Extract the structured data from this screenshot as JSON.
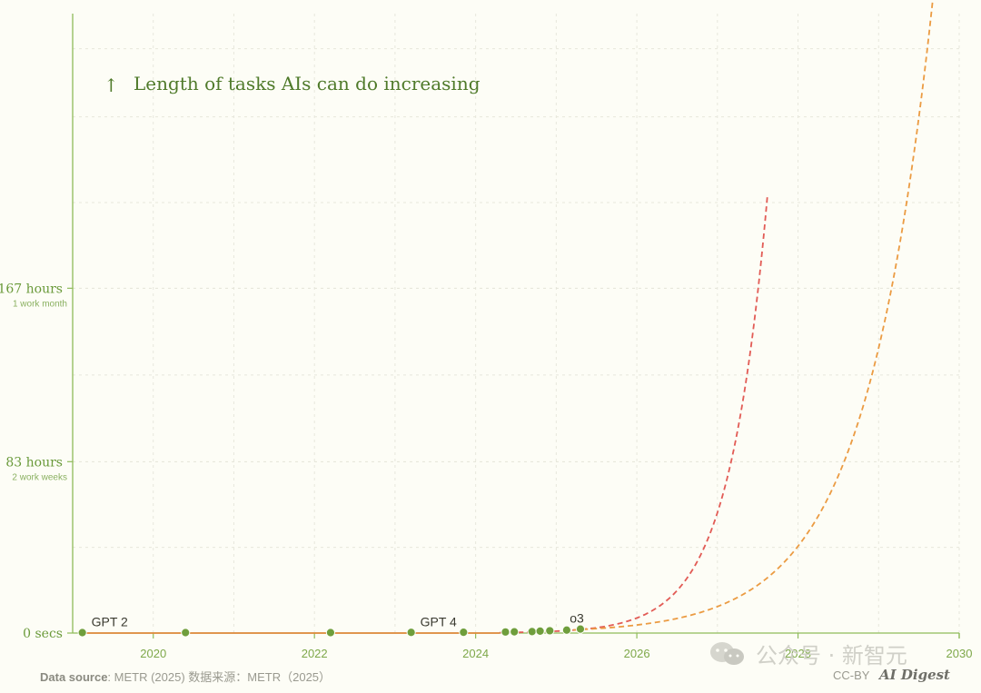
{
  "chart_data": {
    "type": "line",
    "title": "Length of tasks AIs can do increasing",
    "title_arrow": "↑",
    "x_ticks": [
      "2020",
      "2022",
      "2024",
      "2026",
      "2028",
      "2030"
    ],
    "x_tick_values": [
      2020,
      2022,
      2024,
      2026,
      2028,
      2030
    ],
    "xlim": [
      2019,
      2030
    ],
    "ylim_hours": [
      0,
      300
    ],
    "y_ticks": [
      {
        "value": 0,
        "label": "0 secs",
        "sublabel": ""
      },
      {
        "value": 83,
        "label": "83 hours",
        "sublabel": "2 work weeks"
      },
      {
        "value": 167,
        "label": "167 hours",
        "sublabel": "1 work month"
      }
    ],
    "grid": true,
    "series": [
      {
        "type": "scatter",
        "color": "#6f9e3c",
        "points": [
          {
            "x": 2019.12,
            "y": 0.001,
            "label": "GPT 2"
          },
          {
            "x": 2020.4,
            "y": 0.003,
            "label": ""
          },
          {
            "x": 2022.2,
            "y": 0.01,
            "label": ""
          },
          {
            "x": 2023.2,
            "y": 0.1,
            "label": "GPT 4"
          },
          {
            "x": 2023.85,
            "y": 0.15,
            "label": ""
          },
          {
            "x": 2024.37,
            "y": 0.3,
            "label": ""
          },
          {
            "x": 2024.48,
            "y": 0.4,
            "label": ""
          },
          {
            "x": 2024.7,
            "y": 0.5,
            "label": ""
          },
          {
            "x": 2024.8,
            "y": 0.7,
            "label": ""
          },
          {
            "x": 2024.92,
            "y": 0.9,
            "label": ""
          },
          {
            "x": 2025.13,
            "y": 1.2,
            "label": ""
          },
          {
            "x": 2025.3,
            "y": 1.7,
            "label": "o3"
          }
        ]
      },
      {
        "type": "line",
        "style": "solid",
        "color": "#e08a3c",
        "x_range": [
          2019.12,
          2024.3
        ]
      },
      {
        "type": "line",
        "style": "dashed",
        "color": "#e25b55",
        "x_range": [
          2024.3,
          2027.62
        ],
        "doubling_months": 4
      },
      {
        "type": "line",
        "style": "dashed",
        "color": "#eb9b42",
        "x_range": [
          2025.1,
          2030.0
        ],
        "doubling_months": 7
      }
    ]
  },
  "footer": {
    "source_label": "Data source",
    "source_text": ": METR (2025)  数据来源：METR（2025）",
    "license": "CC-BY",
    "brand": "AI Digest"
  },
  "watermark": {
    "text": "公众号 · 新智元",
    "icon": "wechat-icon"
  }
}
